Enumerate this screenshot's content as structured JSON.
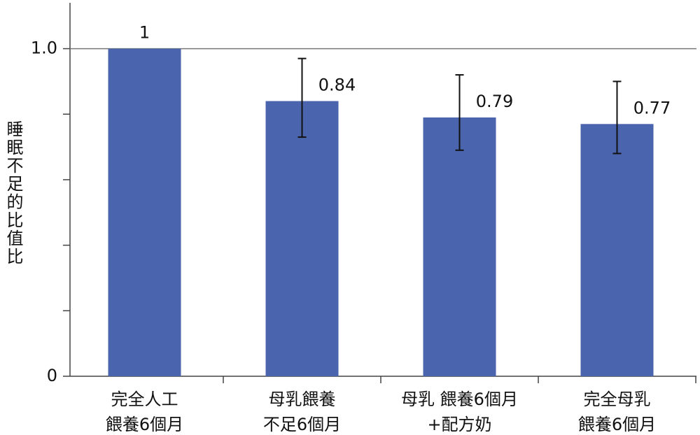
{
  "chart_data": {
    "type": "bar",
    "y_label": "睡眠不足的比值比",
    "categories": [
      [
        "完全人工",
        "餵養6個月"
      ],
      [
        "母乳餵養",
        "不足6個月"
      ],
      [
        "母乳 餵養6個月",
        "+配方奶"
      ],
      [
        "完全母乳",
        "餵養6個月"
      ]
    ],
    "values": [
      1,
      0.84,
      0.79,
      0.77
    ],
    "ci_low": [
      null,
      0.73,
      0.69,
      0.68
    ],
    "ci_high": [
      null,
      0.97,
      0.92,
      0.9
    ],
    "color": "#4a65ad",
    "ylim": [
      0,
      1.14
    ],
    "yticks": [
      0,
      {
        "value": 1,
        "label": "1.0"
      }
    ],
    "yminor_ticks": [
      0.2,
      0.4,
      0.6,
      0.8
    ],
    "grid": true
  }
}
